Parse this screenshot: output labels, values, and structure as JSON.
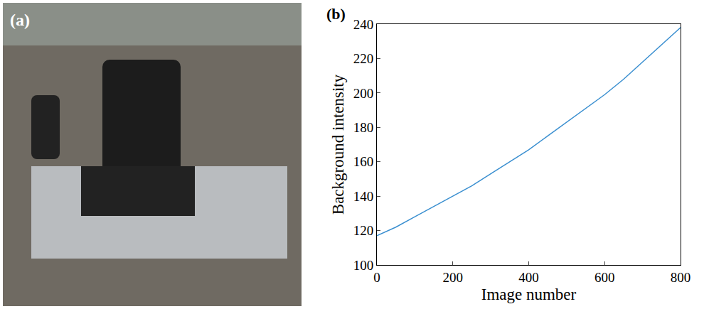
{
  "panel_a": {
    "label": "(a)"
  },
  "chart_data": {
    "type": "line",
    "panel_label": "(b)",
    "x_label": "Image number",
    "y_label": "Background intensity",
    "x": [
      0,
      50,
      100,
      150,
      200,
      250,
      300,
      350,
      400,
      450,
      500,
      550,
      600,
      650,
      700,
      750,
      800
    ],
    "values": [
      117,
      122,
      128,
      134,
      140,
      146,
      153,
      160,
      167,
      175,
      183,
      191,
      199,
      208,
      218,
      228,
      238
    ],
    "color": "#3a8fd0",
    "xlim": [
      0,
      800
    ],
    "xticks": [
      0,
      200,
      400,
      600,
      800
    ],
    "ylim": [
      100,
      240
    ],
    "yticks": [
      100,
      120,
      140,
      160,
      180,
      200,
      220,
      240
    ],
    "grid": false
  }
}
